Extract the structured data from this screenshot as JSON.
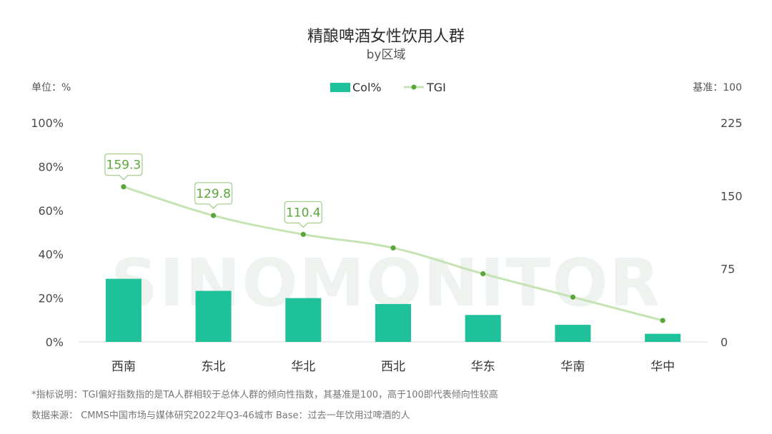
{
  "chart_data": {
    "type": "bar",
    "title": "精酿啤酒女性饮用人群",
    "subtitle": "by区域",
    "unit_label": "单位：%",
    "base_label": "基准：100",
    "categories": [
      "西南",
      "东北",
      "华北",
      "西北",
      "华东",
      "华南",
      "华中"
    ],
    "series": [
      {
        "name": "Col%",
        "type": "bar",
        "axis": "left",
        "color": "#1fc19a",
        "values": [
          28.8,
          23.3,
          20.0,
          17.3,
          12.3,
          7.8,
          3.7
        ]
      },
      {
        "name": "TGI",
        "type": "line",
        "axis": "right",
        "color": "#c6e3b4",
        "marker_color": "#5aa63b",
        "values": [
          159.3,
          129.8,
          110.4,
          96.5,
          70.0,
          46.0,
          22.0
        ],
        "labeled_values": [
          159.3,
          129.8,
          110.4
        ]
      }
    ],
    "y_left": {
      "ylim": [
        0,
        100
      ],
      "ticks": [
        "0%",
        "20%",
        "40%",
        "60%",
        "80%",
        "100%"
      ]
    },
    "y_right": {
      "ylim": [
        0,
        225
      ],
      "ticks": [
        "0",
        "75",
        "150",
        "225"
      ]
    },
    "legend": {
      "position": "top-center"
    },
    "grid": false,
    "watermark": "SINOMONITOR"
  },
  "footnotes": {
    "note": "*指标说明：TGI偏好指数指的是TA人群相较于总体人群的倾向性指数，其基准是100，高于100即代表倾向性较高",
    "source": "数据来源： CMMS中国市场与媒体研究2022年Q3-46城市 Base：过去一年饮用过啤酒的人"
  }
}
